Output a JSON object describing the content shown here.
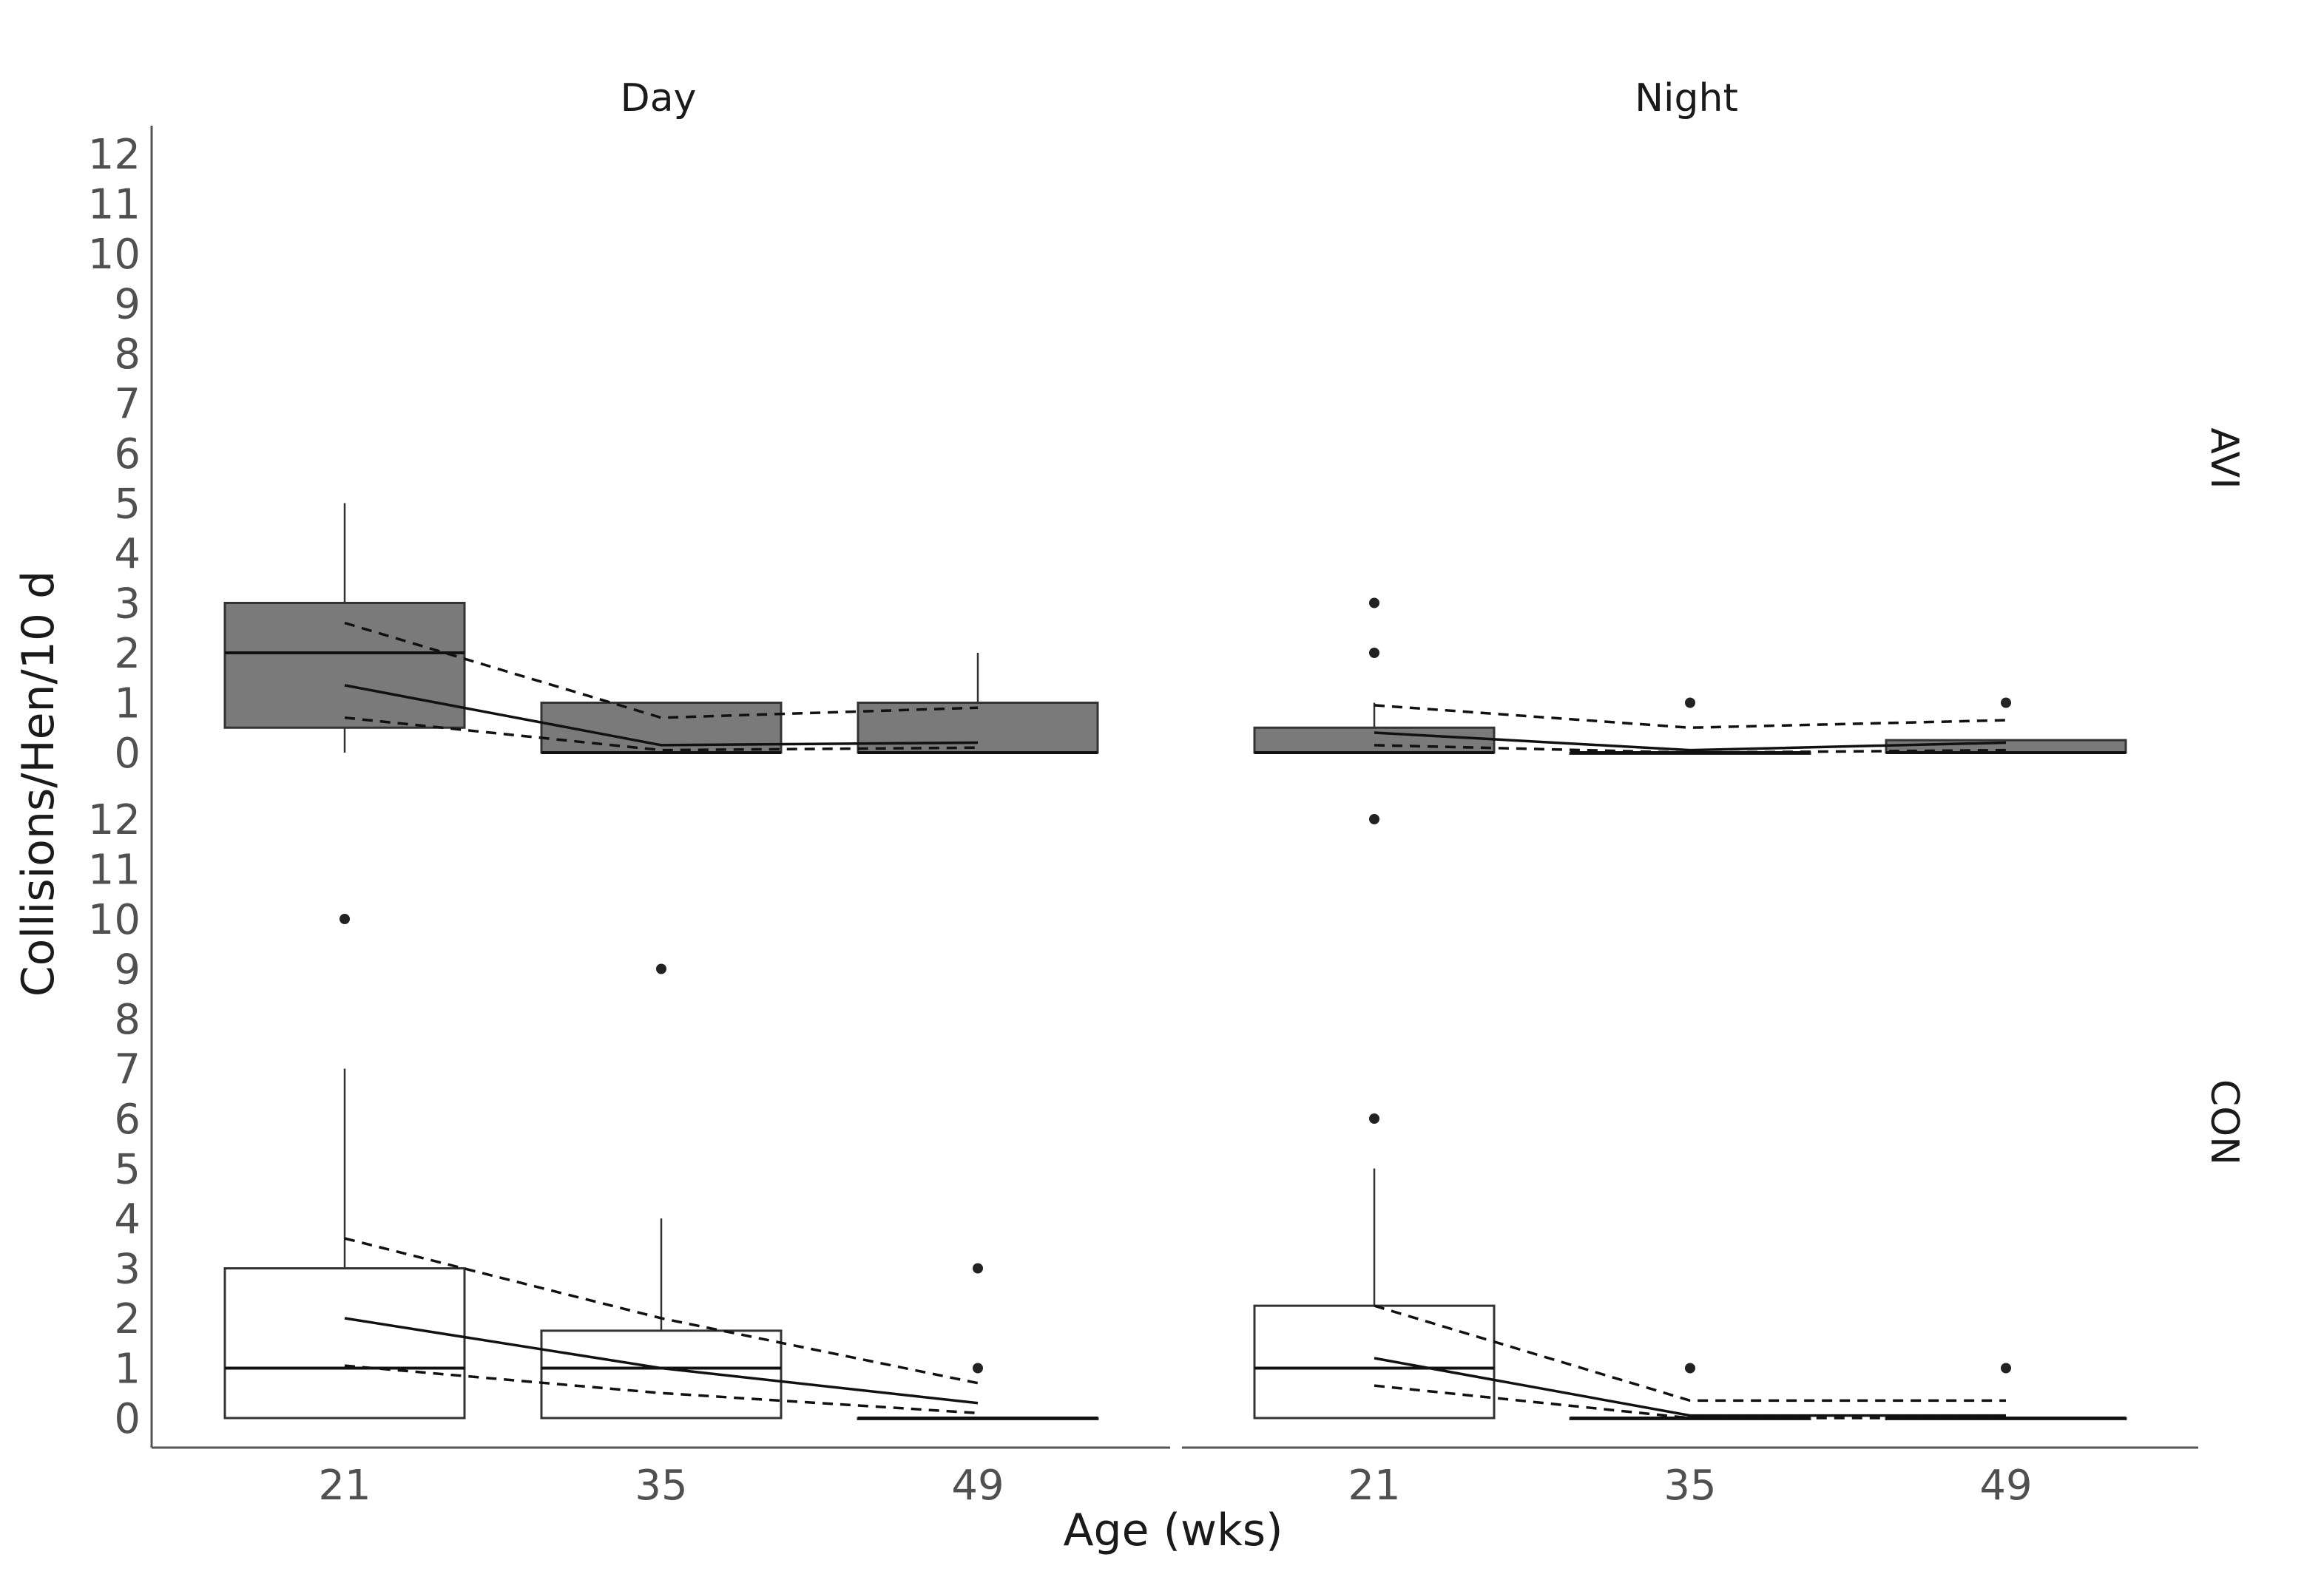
{
  "chart_data": {
    "type": "boxplot",
    "xlabel": "Age (wks)",
    "ylabel": "Collisions/Hen/10 d",
    "x_categories": [
      "21",
      "35",
      "49"
    ],
    "y_ticks": [
      "0",
      "1",
      "2",
      "3",
      "4",
      "5",
      "6",
      "7",
      "8",
      "9",
      "10",
      "11",
      "12"
    ],
    "ylim": [
      0,
      12
    ],
    "colors": {
      "AVI": "#7a7a7a",
      "CON": "#ffffff"
    },
    "columns": [
      "Day",
      "Night"
    ],
    "rows": [
      "AVI",
      "CON"
    ],
    "panels": [
      {
        "column": "Day",
        "row": "AVI",
        "boxes": [
          {
            "age": "21",
            "q1": 0.5,
            "median": 2,
            "q3": 3,
            "whisker_low": 0,
            "whisker_high": 5,
            "outliers": []
          },
          {
            "age": "35",
            "q1": 0,
            "median": 0,
            "q3": 1,
            "whisker_low": 0,
            "whisker_high": 1,
            "outliers": []
          },
          {
            "age": "49",
            "q1": 0,
            "median": 0,
            "q3": 1,
            "whisker_low": 0,
            "whisker_high": 2,
            "outliers": []
          }
        ],
        "fit": {
          "x": [
            "21",
            "35",
            "49"
          ],
          "mean": [
            1.35,
            0.15,
            0.2
          ],
          "lower": [
            0.7,
            0.05,
            0.1
          ],
          "upper": [
            2.6,
            0.7,
            0.9
          ]
        }
      },
      {
        "column": "Night",
        "row": "AVI",
        "boxes": [
          {
            "age": "21",
            "q1": 0,
            "median": 0,
            "q3": 0.5,
            "whisker_low": 0,
            "whisker_high": 1,
            "outliers": [
              2,
              3
            ]
          },
          {
            "age": "35",
            "q1": 0,
            "median": 0,
            "q3": 0,
            "whisker_low": 0,
            "whisker_high": 0,
            "outliers": [
              1
            ]
          },
          {
            "age": "49",
            "q1": 0,
            "median": 0,
            "q3": 0.25,
            "whisker_low": 0,
            "whisker_high": 0.25,
            "outliers": [
              1
            ]
          }
        ],
        "fit": {
          "x": [
            "21",
            "35",
            "49"
          ],
          "mean": [
            0.4,
            0.05,
            0.2
          ],
          "lower": [
            0.15,
            0.0,
            0.05
          ],
          "upper": [
            0.95,
            0.5,
            0.65
          ]
        }
      },
      {
        "column": "Day",
        "row": "CON",
        "boxes": [
          {
            "age": "21",
            "q1": 0,
            "median": 1,
            "q3": 3,
            "whisker_low": 0,
            "whisker_high": 7,
            "outliers": [
              10
            ]
          },
          {
            "age": "35",
            "q1": 0,
            "median": 1,
            "q3": 1.75,
            "whisker_low": 0,
            "whisker_high": 4,
            "outliers": [
              9
            ]
          },
          {
            "age": "49",
            "q1": 0,
            "median": 0,
            "q3": 0,
            "whisker_low": 0,
            "whisker_high": 0,
            "outliers": [
              1,
              3
            ]
          }
        ],
        "fit": {
          "x": [
            "21",
            "35",
            "49"
          ],
          "mean": [
            2.0,
            1.0,
            0.3
          ],
          "lower": [
            1.05,
            0.5,
            0.1
          ],
          "upper": [
            3.6,
            2.0,
            0.7
          ]
        }
      },
      {
        "column": "Night",
        "row": "CON",
        "boxes": [
          {
            "age": "21",
            "q1": 0,
            "median": 1,
            "q3": 2.25,
            "whisker_low": 0,
            "whisker_high": 5,
            "outliers": [
              6,
              12
            ]
          },
          {
            "age": "35",
            "q1": 0,
            "median": 0,
            "q3": 0,
            "whisker_low": 0,
            "whisker_high": 0,
            "outliers": [
              1
            ]
          },
          {
            "age": "49",
            "q1": 0,
            "median": 0,
            "q3": 0,
            "whisker_low": 0,
            "whisker_high": 0,
            "outliers": [
              1
            ]
          }
        ],
        "fit": {
          "x": [
            "21",
            "35",
            "49"
          ],
          "mean": [
            1.2,
            0.05,
            0.05
          ],
          "lower": [
            0.65,
            0.0,
            0.0
          ],
          "upper": [
            2.25,
            0.35,
            0.35
          ]
        }
      }
    ]
  }
}
